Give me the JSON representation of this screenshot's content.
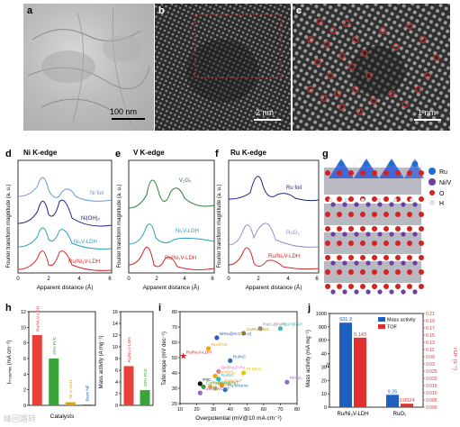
{
  "panels": {
    "a": {
      "label": "a",
      "scale": "100 nm"
    },
    "b": {
      "label": "b",
      "scale": "2 nm"
    },
    "c": {
      "label": "c",
      "scale": "1 nm"
    },
    "d": {
      "label": "d",
      "title": "Ni K-edge",
      "curves": [
        "Ni foil",
        "Ni(OH)₂",
        "Ni₃V-LDH",
        "Ru/Ni₃V-LDH"
      ]
    },
    "e": {
      "label": "e",
      "title": "V K-edge",
      "curves": [
        "V₂O₅",
        "Ni₃V-LDH",
        "Ru/Ni₃V-LDH"
      ]
    },
    "f": {
      "label": "f",
      "title": "Ru K-edge",
      "curves": [
        "Ru foil",
        "RuO₂",
        "Ru/Ni₃V-LDH"
      ]
    },
    "g": {
      "label": "g",
      "legend": [
        "Ru",
        "Ni/V",
        "O",
        "H"
      ]
    },
    "h": {
      "label": "h"
    },
    "i": {
      "label": "i"
    },
    "j": {
      "label": "j"
    }
  },
  "exafs": {
    "ylabel": "Fourier transform magnitude (a. u.)",
    "xlabel": "Apparent distance (Å)",
    "xticks": [
      "0",
      "2",
      "4",
      "6"
    ]
  },
  "watermark": "峰回路转",
  "colors": {
    "red": "#d62728",
    "green": "#2ca02c",
    "orange": "#e6a000",
    "blue": "#1f77b4",
    "navy": "#1a237e"
  },
  "chart_data": [
    {
      "type": "bar",
      "panel": "h-left",
      "ylabel": "Iₕ₇₁ₑₒₕₑₓ (mA cm⁻²)",
      "ylabel_text": "j",
      "xlabel": "Catalysts",
      "categories": [
        "Ru/Ni₃V-LDH",
        "20% Pt/C",
        "Ni₃V-LDH",
        "Bare NF"
      ],
      "values": [
        9.0,
        6.0,
        0.4,
        0.1
      ],
      "ylim": [
        0,
        12
      ],
      "yticks": [
        "0",
        "2",
        "4",
        "6",
        "8",
        "10",
        "12"
      ]
    },
    {
      "type": "bar",
      "panel": "h-right",
      "ylabel": "Mass activity (A mg⁻¹)",
      "categories": [
        "Ru/Ni₃V-LDH",
        "20% Pt/C"
      ],
      "values": [
        6.7,
        2.6
      ],
      "ylim": [
        0,
        16
      ],
      "yticks": [
        "0",
        "2",
        "4",
        "6",
        "8",
        "10",
        "12",
        "14",
        "16"
      ]
    },
    {
      "type": "scatter",
      "panel": "i",
      "xlabel": "Overpotential (mV@10 mA cm⁻²)",
      "ylabel": "Tafel slope (mV dec⁻¹)",
      "xticks": [
        "10",
        "20",
        "30",
        "40",
        "50",
        "60",
        "70",
        "80"
      ],
      "yticks": [
        "20",
        "30",
        "40",
        "50",
        "60",
        "70",
        "80"
      ],
      "xlim": [
        10,
        80
      ],
      "ylim": [
        20,
        80
      ],
      "points": [
        {
          "label": "Ru/Ni₃V-LDH",
          "x": 12,
          "y": 51,
          "color": "#d62728"
        },
        {
          "label": "RuP₂@NPC",
          "x": 58,
          "y": 69,
          "color": "#888888"
        },
        {
          "label": "RuP@NPC",
          "x": 70,
          "y": 69,
          "color": "#3fb8b8"
        },
        {
          "label": "Co/Ru@NC",
          "x": 48,
          "y": 66,
          "color": "#9c8f2b"
        },
        {
          "label": "NiRu@N-C (5-2)",
          "x": 32,
          "y": 63,
          "color": "#3355cc"
        },
        {
          "label": "Ru@CN",
          "x": 27,
          "y": 56,
          "color": "#f4a500"
        },
        {
          "label": "Ru/NC",
          "x": 40,
          "y": 48,
          "color": "#2b6cb0"
        },
        {
          "label": "Ni@Ni₂P-Ru",
          "x": 33,
          "y": 41,
          "color": "#e377c2"
        },
        {
          "label": "Pt-MoS₂",
          "x": 48,
          "y": 40,
          "color": "#e6c800"
        },
        {
          "label": "Pt/VS₂",
          "x": 74,
          "y": 34,
          "color": "#9467bd"
        },
        {
          "label": "Ru-MoS₂",
          "x": 31,
          "y": 38,
          "color": "#f5a700"
        },
        {
          "label": "Ru/NC",
          "x": 33,
          "y": 36,
          "color": "#17becf"
        },
        {
          "label": "Pt@CNT",
          "x": 35,
          "y": 32,
          "color": "#ff7f0e"
        },
        {
          "label": "RuNC",
          "x": 28,
          "y": 31,
          "color": "#ff9933"
        },
        {
          "label": "Pt/DLC",
          "x": 31,
          "y": 30,
          "color": "#bcbd22"
        },
        {
          "label": "Pt/C",
          "x": 22,
          "y": 33,
          "color": "#111111"
        },
        {
          "label": "CoRu@MWCNT",
          "x": 24,
          "y": 31,
          "color": "#2ca02c"
        },
        {
          "label": "Ru/MXene",
          "x": 37,
          "y": 29,
          "color": "#1f77b4"
        },
        {
          "label": "Ru@MWCNT",
          "x": 22,
          "y": 27,
          "color": "#9467bd"
        }
      ]
    },
    {
      "type": "bar",
      "panel": "j",
      "categories": [
        "Ru/Ni₃V-LDH",
        "RuO₂"
      ],
      "series": [
        {
          "name": "Mass activity",
          "values": [
            931.3,
            9.25
          ],
          "color": "#1f5fbf"
        },
        {
          "name": "TOF",
          "values": [
            0.143,
            0.0024
          ],
          "color": "#e03030"
        }
      ],
      "ylabel": "Mass activity (mA mg⁻¹)",
      "y2label": "TOF (s⁻¹)",
      "yticks": [
        "0",
        "10",
        "20",
        "30",
        "40",
        "800",
        "900",
        "1000"
      ],
      "y2ticks": [
        "0.000",
        "0.005",
        "0.010",
        "0.015",
        "0.020",
        "0.025",
        "0.03",
        "0.09",
        "0.11",
        "0.13",
        "0.15",
        "0.17",
        "0.19",
        "0.21"
      ],
      "labels": [
        "931.3",
        "0.143",
        "9.25",
        "0.0024"
      ]
    }
  ]
}
